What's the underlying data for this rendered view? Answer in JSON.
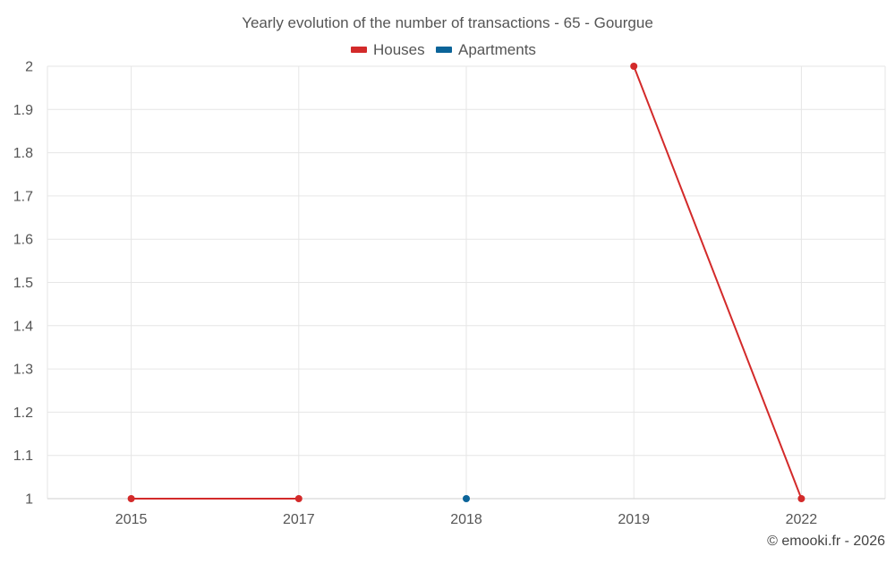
{
  "chart_data": {
    "type": "line",
    "title": "Yearly evolution of the number of transactions - 65 - Gourgue",
    "categories": [
      "2015",
      "2017",
      "2018",
      "2019",
      "2022"
    ],
    "series": [
      {
        "name": "Houses",
        "color": "#d32a2a",
        "values": [
          1,
          1,
          null,
          2,
          1
        ],
        "segments": [
          [
            0,
            1
          ],
          [
            3,
            4
          ]
        ]
      },
      {
        "name": "Apartments",
        "color": "#0b6499",
        "values": [
          null,
          null,
          1,
          null,
          null
        ],
        "segments": []
      }
    ],
    "ylim": [
      1,
      2
    ],
    "yticks": [
      "2",
      "1.9",
      "1.8",
      "1.7",
      "1.6",
      "1.5",
      "1.4",
      "1.3",
      "1.2",
      "1.1",
      "1"
    ],
    "grid": true,
    "legend": "top-center",
    "credit": "© emooki.fr - 2026"
  }
}
